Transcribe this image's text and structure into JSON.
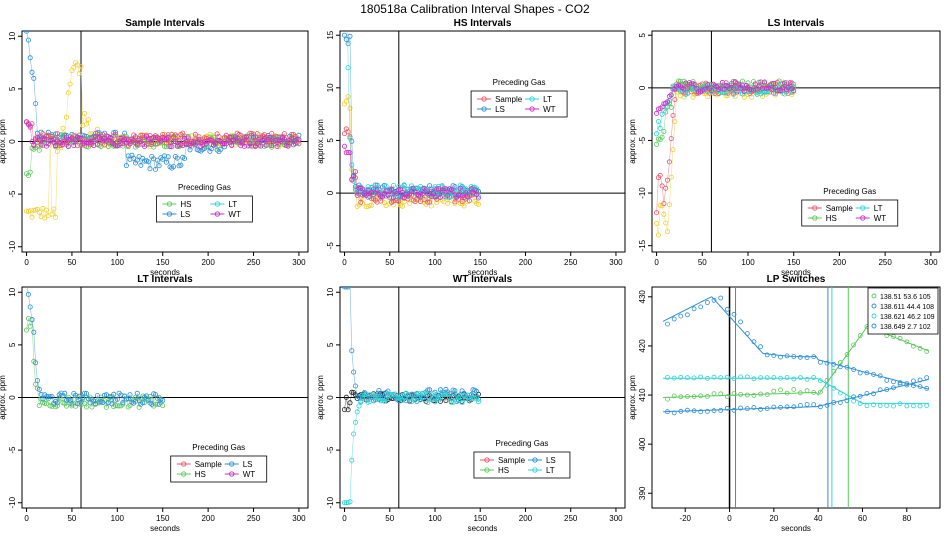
{
  "title": "180518a   Calibration Interval Shapes - CO2",
  "colors": {
    "Sample": "#e8566b",
    "HS": "#5cc85c",
    "LS": "#2b8fd6",
    "LT": "#2fd4d4",
    "WT": "#c92fc9",
    "Light": "#f0cf2e",
    "Dark": "#222222"
  },
  "chart_data": [
    {
      "type": "scatter",
      "title": "Sample Intervals",
      "xlabel": "seconds",
      "ylabel": "approx. ppm",
      "xlim": [
        -5,
        310
      ],
      "ylim": [
        -10.5,
        10.5
      ],
      "xticks": [
        0,
        50,
        100,
        150,
        200,
        250,
        300
      ],
      "yticks": [
        -10,
        -5,
        0,
        5,
        10
      ],
      "vline": 60,
      "hline": 0,
      "legend": {
        "title": "Preceding Gas",
        "position": "bottom-center",
        "entries": [
          "HS",
          "LT",
          "LS",
          "WT"
        ]
      },
      "series": [
        {
          "name": "Light",
          "color_key": "Light",
          "shape": "yellow_trace",
          "t_end": 300
        },
        {
          "name": "LS",
          "color_key": "LS",
          "shape": "ls_sample",
          "t_end": 300
        },
        {
          "name": "HS",
          "color_key": "HS",
          "shape": "hs_sample",
          "t_end": 300
        },
        {
          "name": "Sample",
          "color_key": "Sample",
          "shape": "noise_pos",
          "t_end": 300
        },
        {
          "name": "WT",
          "color_key": "WT",
          "shape": "wt_sample",
          "t_end": 300
        }
      ]
    },
    {
      "type": "scatter",
      "title": "HS Intervals",
      "xlabel": "seconds",
      "ylabel": "approx. ppm",
      "xlim": [
        -5,
        310
      ],
      "ylim": [
        -5.6,
        15.4
      ],
      "xticks": [
        0,
        50,
        100,
        150,
        200,
        250,
        300
      ],
      "yticks": [
        -5,
        0,
        5,
        10,
        15
      ],
      "vline": 60,
      "hline": 0,
      "legend": {
        "title": "Preceding Gas",
        "position": "top-center",
        "entries": [
          "Sample",
          "LT",
          "LS",
          "WT"
        ]
      },
      "series": [
        {
          "name": "Light",
          "color_key": "Light",
          "shape": "hs_light",
          "t_end": 148
        },
        {
          "name": "Sample",
          "color_key": "Sample",
          "shape": "hs_sample_col",
          "t_end": 148
        },
        {
          "name": "LS",
          "color_key": "LS",
          "shape": "hs_ls",
          "t_end": 148
        },
        {
          "name": "LT",
          "color_key": "LT",
          "shape": "hs_lt",
          "t_end": 148
        },
        {
          "name": "WT",
          "color_key": "WT",
          "shape": "hs_wt",
          "t_end": 148
        }
      ]
    },
    {
      "type": "scatter",
      "title": "LS Intervals",
      "xlabel": "seconds",
      "ylabel": "approx. ppm",
      "xlim": [
        -5,
        310
      ],
      "ylim": [
        -15.6,
        5.4
      ],
      "xticks": [
        0,
        50,
        100,
        150,
        200,
        250,
        300
      ],
      "yticks": [
        -15,
        -10,
        -5,
        0,
        5
      ],
      "vline": 60,
      "hline": 0,
      "legend": {
        "title": "Preceding Gas",
        "position": "bottom-right",
        "entries": [
          "Sample",
          "LT",
          "HS",
          "WT"
        ]
      },
      "series": [
        {
          "name": "Light",
          "color_key": "Light",
          "shape": "ls_light",
          "t_end": 150
        },
        {
          "name": "Sample",
          "color_key": "Sample",
          "shape": "ls_sample_col",
          "t_end": 150
        },
        {
          "name": "HS",
          "color_key": "HS",
          "shape": "ls_hs",
          "t_end": 150
        },
        {
          "name": "LT",
          "color_key": "LT",
          "shape": "ls_lt",
          "t_end": 150
        },
        {
          "name": "WT",
          "color_key": "WT",
          "shape": "ls_wt",
          "t_end": 150
        }
      ]
    },
    {
      "type": "scatter",
      "title": "LT Intervals",
      "xlabel": "seconds",
      "ylabel": "approx. ppm",
      "xlim": [
        -5,
        310
      ],
      "ylim": [
        -10.5,
        10.5
      ],
      "xticks": [
        0,
        50,
        100,
        150,
        200,
        250,
        300
      ],
      "yticks": [
        -10,
        -5,
        0,
        5,
        10
      ],
      "vline": 60,
      "hline": 0,
      "legend": {
        "title": "Preceding Gas",
        "position": "bottom-right",
        "entries": [
          "Sample",
          "LS",
          "HS",
          "WT"
        ]
      },
      "series": [
        {
          "name": "HS",
          "color_key": "HS",
          "shape": "lt_hs",
          "t_end": 150
        },
        {
          "name": "LS",
          "color_key": "LS",
          "shape": "lt_ls",
          "t_end": 150
        }
      ]
    },
    {
      "type": "scatter",
      "title": "WT Intervals",
      "xlabel": "seconds",
      "ylabel": "approx. ppm",
      "xlim": [
        -5,
        310
      ],
      "ylim": [
        -10.5,
        10.5
      ],
      "xticks": [
        0,
        50,
        100,
        150,
        200,
        250,
        300
      ],
      "yticks": [
        -10,
        -5,
        0,
        5,
        10
      ],
      "vline": 60,
      "hline": 0,
      "legend": {
        "title": "Preceding Gas",
        "position": "bottom-center",
        "entries": [
          "Sample",
          "LS",
          "HS",
          "LT"
        ]
      },
      "series": [
        {
          "name": "Dark",
          "color_key": "Dark",
          "shape": "wt_dark",
          "t_end": 148
        },
        {
          "name": "LS",
          "color_key": "LS",
          "shape": "wt_ls",
          "t_end": 148
        },
        {
          "name": "LT",
          "color_key": "LT",
          "shape": "wt_lt",
          "t_end": 148
        }
      ]
    },
    {
      "type": "line",
      "title": "LP Switches",
      "xlabel": "seconds",
      "ylabel": "approx. ppm",
      "xlim": [
        -35,
        95
      ],
      "ylim": [
        387,
        432
      ],
      "xticks": [
        -20,
        0,
        20,
        40,
        60,
        80
      ],
      "yticks": [
        390,
        400,
        410,
        420,
        430
      ],
      "vline": 0,
      "legend": {
        "position": "top-right",
        "entries": [
          "138.51 53.6 105",
          "138.611 44.4 108",
          "138.621 46.2 109",
          "138.649 2.7 102"
        ]
      },
      "switch_lines": [
        {
          "x": 53.6,
          "color_key": "HS"
        },
        {
          "x": 44.4,
          "color_key": "LS"
        },
        {
          "x": 46.2,
          "color_key": "LT"
        },
        {
          "x": 2.7,
          "color_key": "LS"
        }
      ],
      "series": [
        {
          "name": "138.51 53.6 105",
          "color_key": "HS",
          "shape": "lp1"
        },
        {
          "name": "138.611 44.4 108",
          "color_key": "LS",
          "shape": "lp2"
        },
        {
          "name": "138.621 46.2 109",
          "color_key": "LT",
          "shape": "lp3"
        },
        {
          "name": "138.649 2.7 102",
          "color_key": "LS",
          "shape": "lp4"
        }
      ]
    }
  ]
}
